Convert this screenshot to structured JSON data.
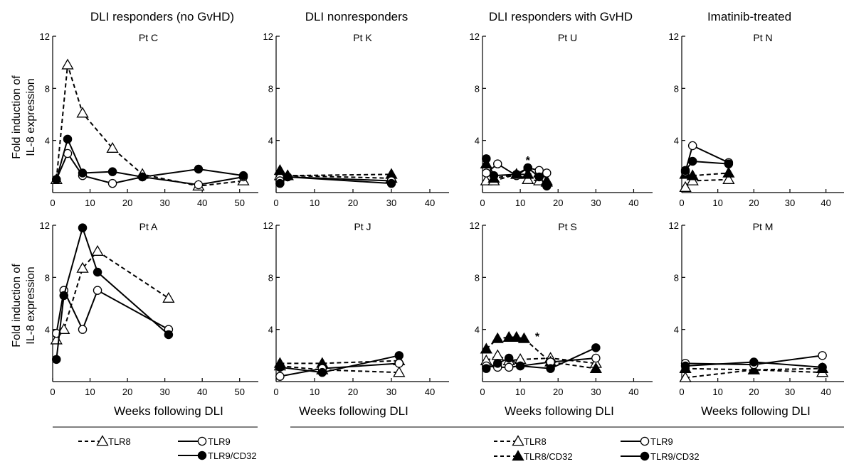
{
  "column_titles": [
    "DLI responders (no GvHD)",
    "DLI nonresponders",
    "DLI responders with GvHD",
    "Imatinib-treated"
  ],
  "ylabel_lines": [
    "Fold induction of",
    "IL-8 expression"
  ],
  "xlabel": "Weeks following DLI",
  "legend_left": [
    {
      "label": "TLR8",
      "marker": "open-triangle",
      "dash": true
    },
    {
      "label": "TLR9",
      "marker": "open-circle",
      "dash": false
    },
    {
      "label": "TLR9/CD32",
      "marker": "filled-circle",
      "dash": false
    }
  ],
  "legend_right": [
    {
      "label": "TLR8",
      "marker": "open-triangle",
      "dash": true
    },
    {
      "label": "TLR9",
      "marker": "open-circle",
      "dash": false
    },
    {
      "label": "TLR8/CD32",
      "marker": "filled-triangle",
      "dash": true
    },
    {
      "label": "TLR9/CD32",
      "marker": "filled-circle",
      "dash": false
    }
  ],
  "chart_data": [
    {
      "type": "line",
      "title": "Pt C",
      "xlim": [
        0,
        55
      ],
      "ylim": [
        0,
        12
      ],
      "xticks": [
        0,
        10,
        20,
        30,
        40,
        50
      ],
      "yticks": [
        4,
        8,
        12
      ],
      "series": [
        {
          "name": "TLR8",
          "x": [
            1,
            4,
            8,
            16,
            24,
            39,
            51
          ],
          "values": [
            1.0,
            9.8,
            6.1,
            3.4,
            1.4,
            0.5,
            0.9
          ]
        },
        {
          "name": "TLR9",
          "x": [
            1,
            4,
            8,
            16,
            24,
            39,
            51
          ],
          "values": [
            1.0,
            3.0,
            1.3,
            0.7,
            1.2,
            0.6,
            1.2
          ]
        },
        {
          "name": "TLR9/CD32",
          "x": [
            1,
            4,
            8,
            16,
            24,
            39,
            51
          ],
          "values": [
            1.0,
            4.1,
            1.5,
            1.6,
            1.2,
            1.8,
            1.3
          ]
        }
      ],
      "annotations": []
    },
    {
      "type": "line",
      "title": "Pt K",
      "xlim": [
        0,
        45
      ],
      "ylim": [
        0,
        12
      ],
      "xticks": [
        0,
        10,
        20,
        30,
        40
      ],
      "yticks": [
        4,
        8,
        12
      ],
      "series": [
        {
          "name": "TLR8",
          "x": [
            1,
            3,
            30
          ],
          "values": [
            1.3,
            1.3,
            1.1
          ]
        },
        {
          "name": "TLR9",
          "x": [
            1,
            3,
            30
          ],
          "values": [
            0.9,
            1.2,
            0.9
          ]
        },
        {
          "name": "TLR8/CD32",
          "x": [
            1,
            3,
            30
          ],
          "values": [
            1.7,
            1.3,
            1.4
          ]
        },
        {
          "name": "TLR9/CD32",
          "x": [
            1,
            3,
            30
          ],
          "values": [
            0.7,
            1.2,
            0.7
          ]
        }
      ],
      "annotations": []
    },
    {
      "type": "line",
      "title": "Pt U",
      "xlim": [
        0,
        45
      ],
      "ylim": [
        0,
        12
      ],
      "xticks": [
        0,
        10,
        20,
        30,
        40
      ],
      "yticks": [
        4,
        8,
        12
      ],
      "series": [
        {
          "name": "TLR8",
          "x": [
            1,
            3,
            9,
            12,
            15,
            17
          ],
          "values": [
            0.9,
            0.9,
            1.4,
            1.0,
            0.9,
            0.8
          ]
        },
        {
          "name": "TLR9",
          "x": [
            1,
            4,
            9,
            12,
            15,
            17
          ],
          "values": [
            1.5,
            2.2,
            1.3,
            1.9,
            1.7,
            1.5
          ]
        },
        {
          "name": "TLR8/CD32",
          "x": [
            1,
            3,
            9,
            12,
            15,
            17
          ],
          "values": [
            2.2,
            1.1,
            1.4,
            1.4,
            1.5,
            0.9
          ]
        },
        {
          "name": "TLR9/CD32",
          "x": [
            1,
            3,
            9,
            12,
            15,
            17
          ],
          "values": [
            2.6,
            1.3,
            1.4,
            1.9,
            1.2,
            0.5
          ]
        }
      ],
      "annotations": [
        {
          "text": "*",
          "x": 12,
          "y": 2.5
        }
      ]
    },
    {
      "type": "line",
      "title": "Pt N",
      "xlim": [
        0,
        45
      ],
      "ylim": [
        0,
        12
      ],
      "xticks": [
        0,
        10,
        20,
        30,
        40
      ],
      "yticks": [
        4,
        8,
        12
      ],
      "series": [
        {
          "name": "TLR8",
          "x": [
            1,
            3,
            13
          ],
          "values": [
            0.4,
            0.9,
            1.0
          ]
        },
        {
          "name": "TLR9",
          "x": [
            1,
            3,
            13
          ],
          "values": [
            1.6,
            3.6,
            2.3
          ]
        },
        {
          "name": "TLR8/CD32",
          "x": [
            1,
            3,
            13
          ],
          "values": [
            1.4,
            1.3,
            1.5
          ]
        },
        {
          "name": "TLR9/CD32",
          "x": [
            1,
            3,
            13
          ],
          "values": [
            1.7,
            2.4,
            2.2
          ]
        }
      ],
      "annotations": []
    },
    {
      "type": "line",
      "title": "Pt A",
      "xlim": [
        0,
        55
      ],
      "ylim": [
        0,
        12
      ],
      "xticks": [
        0,
        10,
        20,
        30,
        40,
        50
      ],
      "yticks": [
        4,
        8,
        12
      ],
      "series": [
        {
          "name": "TLR8",
          "x": [
            1,
            3,
            8,
            12,
            31
          ],
          "values": [
            3.2,
            4.0,
            8.7,
            10.0,
            6.4
          ]
        },
        {
          "name": "TLR9",
          "x": [
            1,
            3,
            8,
            12,
            31
          ],
          "values": [
            3.7,
            7.0,
            4.0,
            7.0,
            4.0
          ]
        },
        {
          "name": "TLR9/CD32",
          "x": [
            1,
            3,
            8,
            12,
            31
          ],
          "values": [
            1.7,
            6.6,
            11.8,
            8.4,
            3.6
          ]
        }
      ],
      "annotations": []
    },
    {
      "type": "line",
      "title": "Pt J",
      "xlim": [
        0,
        45
      ],
      "ylim": [
        0,
        12
      ],
      "xticks": [
        0,
        10,
        20,
        30,
        40
      ],
      "yticks": [
        4,
        8,
        12
      ],
      "series": [
        {
          "name": "TLR8",
          "x": [
            1,
            12,
            32
          ],
          "values": [
            1.2,
            0.9,
            0.7
          ]
        },
        {
          "name": "TLR9",
          "x": [
            1,
            12,
            32
          ],
          "values": [
            0.4,
            1.0,
            1.4
          ]
        },
        {
          "name": "TLR8/CD32",
          "x": [
            1,
            12,
            32
          ],
          "values": [
            1.4,
            1.4,
            1.6
          ]
        },
        {
          "name": "TLR9/CD32",
          "x": [
            1,
            12,
            32
          ],
          "values": [
            1.1,
            0.7,
            2.0
          ]
        }
      ],
      "annotations": []
    },
    {
      "type": "line",
      "title": "Pt S",
      "xlim": [
        0,
        45
      ],
      "ylim": [
        0,
        12
      ],
      "xticks": [
        0,
        10,
        20,
        30,
        40
      ],
      "yticks": [
        4,
        8,
        12
      ],
      "series": [
        {
          "name": "TLR8",
          "x": [
            1,
            4,
            7,
            10,
            18,
            30
          ],
          "values": [
            1.6,
            2.0,
            1.6,
            1.7,
            1.8,
            1.4
          ]
        },
        {
          "name": "TLR9",
          "x": [
            1,
            4,
            7,
            10,
            18,
            30
          ],
          "values": [
            1.2,
            1.1,
            1.1,
            1.2,
            1.5,
            1.8
          ]
        },
        {
          "name": "TLR8/CD32",
          "x": [
            1,
            4,
            7,
            9,
            11,
            18,
            30
          ],
          "values": [
            2.5,
            3.3,
            3.4,
            3.4,
            3.3,
            1.5,
            1.0
          ]
        },
        {
          "name": "TLR9/CD32",
          "x": [
            1,
            4,
            7,
            10,
            18,
            30
          ],
          "values": [
            1.0,
            1.4,
            1.8,
            1.2,
            1.0,
            2.6
          ]
        }
      ],
      "annotations": [
        {
          "text": "*",
          "x": 14.5,
          "y": 3.5
        }
      ]
    },
    {
      "type": "line",
      "title": "Pt M",
      "xlim": [
        0,
        45
      ],
      "ylim": [
        0,
        12
      ],
      "xticks": [
        0,
        10,
        20,
        30,
        40
      ],
      "yticks": [
        4,
        8,
        12
      ],
      "series": [
        {
          "name": "TLR8",
          "x": [
            1,
            20,
            39
          ],
          "values": [
            0.3,
            0.9,
            0.7
          ]
        },
        {
          "name": "TLR9",
          "x": [
            1,
            20,
            39
          ],
          "values": [
            1.4,
            1.3,
            2.0
          ]
        },
        {
          "name": "TLR8/CD32",
          "x": [
            1,
            20,
            39
          ],
          "values": [
            1.0,
            0.9,
            1.0
          ]
        },
        {
          "name": "TLR9/CD32",
          "x": [
            1,
            20,
            39
          ],
          "values": [
            1.2,
            1.5,
            1.1
          ]
        }
      ],
      "annotations": []
    }
  ]
}
